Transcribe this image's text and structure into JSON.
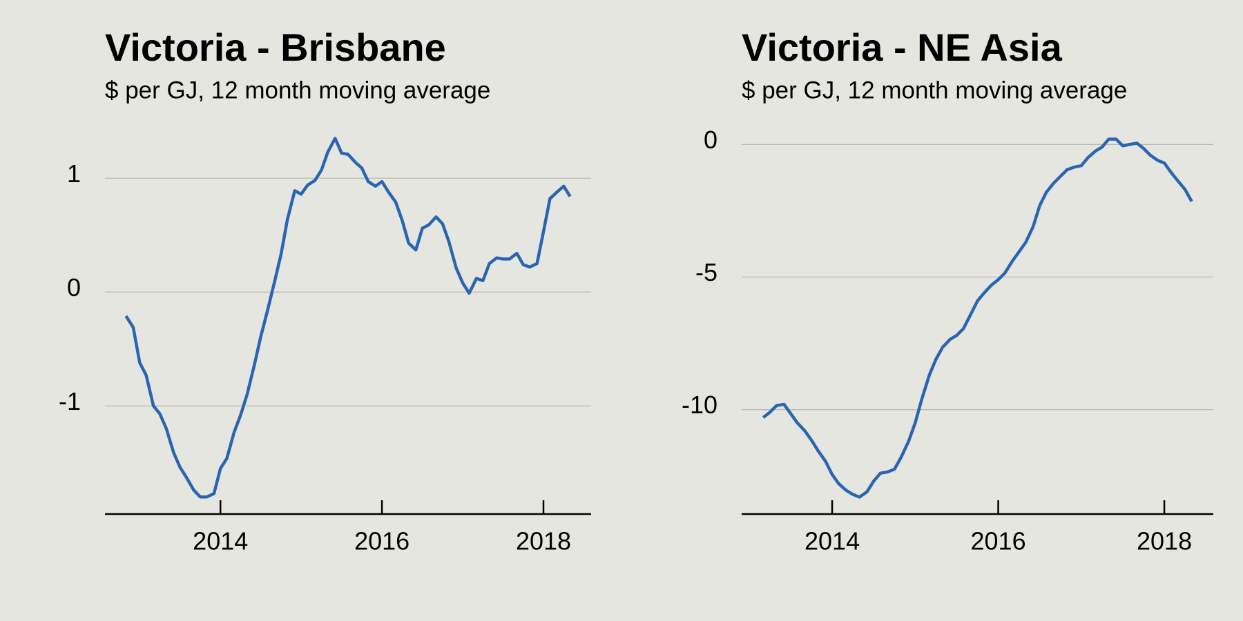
{
  "chart_data": [
    {
      "type": "line",
      "title": "Victoria - Brisbane",
      "subtitle": "$ per GJ, 12 month moving average",
      "x": [
        2012.83,
        2012.92,
        2013.0,
        2013.08,
        2013.17,
        2013.25,
        2013.33,
        2013.42,
        2013.5,
        2013.58,
        2013.67,
        2013.75,
        2013.83,
        2013.92,
        2014.0,
        2014.08,
        2014.17,
        2014.25,
        2014.33,
        2014.42,
        2014.5,
        2014.58,
        2014.67,
        2014.75,
        2014.83,
        2014.92,
        2015.0,
        2015.08,
        2015.17,
        2015.25,
        2015.33,
        2015.42,
        2015.5,
        2015.58,
        2015.67,
        2015.75,
        2015.83,
        2015.92,
        2016.0,
        2016.08,
        2016.17,
        2016.25,
        2016.33,
        2016.42,
        2016.5,
        2016.58,
        2016.67,
        2016.75,
        2016.83,
        2016.92,
        2017.0,
        2017.08,
        2017.17,
        2017.25,
        2017.33,
        2017.42,
        2017.5,
        2017.58,
        2017.67,
        2017.75,
        2017.83,
        2017.92,
        2018.0,
        2018.08,
        2018.17,
        2018.25,
        2018.33
      ],
      "series": [
        {
          "color": "#2a65b0",
          "values": [
            -0.21,
            -0.31,
            -0.62,
            -0.73,
            -1.0,
            -1.07,
            -1.2,
            -1.41,
            -1.54,
            -1.63,
            -1.74,
            -1.8,
            -1.8,
            -1.77,
            -1.55,
            -1.46,
            -1.23,
            -1.08,
            -0.9,
            -0.64,
            -0.39,
            -0.17,
            0.09,
            0.33,
            0.64,
            0.89,
            0.86,
            0.94,
            0.98,
            1.07,
            1.23,
            1.35,
            1.22,
            1.21,
            1.14,
            1.09,
            0.97,
            0.93,
            0.97,
            0.88,
            0.79,
            0.63,
            0.43,
            0.37,
            0.56,
            0.59,
            0.66,
            0.6,
            0.44,
            0.21,
            0.08,
            -0.01,
            0.12,
            0.1,
            0.25,
            0.3,
            0.29,
            0.29,
            0.34,
            0.24,
            0.22,
            0.25,
            0.53,
            0.82,
            0.88,
            0.93,
            0.84
          ]
        }
      ],
      "xlim": [
        2012.57,
        2018.59
      ],
      "xticks": [
        2014,
        2016,
        2018
      ],
      "ylim": [
        -1.95,
        1.45
      ],
      "yticks": [
        -1,
        0,
        1
      ],
      "grid": true
    },
    {
      "type": "line",
      "title": "Victoria - NE Asia",
      "subtitle": "$ per GJ, 12 month moving average",
      "x": [
        2013.17,
        2013.25,
        2013.33,
        2013.42,
        2013.5,
        2013.58,
        2013.67,
        2013.75,
        2013.83,
        2013.92,
        2014.0,
        2014.08,
        2014.17,
        2014.25,
        2014.33,
        2014.42,
        2014.5,
        2014.58,
        2014.67,
        2014.75,
        2014.83,
        2014.92,
        2015.0,
        2015.08,
        2015.17,
        2015.25,
        2015.33,
        2015.42,
        2015.5,
        2015.58,
        2015.67,
        2015.75,
        2015.83,
        2015.92,
        2016.0,
        2016.08,
        2016.17,
        2016.25,
        2016.33,
        2016.42,
        2016.5,
        2016.58,
        2016.67,
        2016.75,
        2016.83,
        2016.92,
        2017.0,
        2017.08,
        2017.17,
        2017.25,
        2017.33,
        2017.42,
        2017.5,
        2017.58,
        2017.67,
        2017.75,
        2017.83,
        2017.92,
        2018.0,
        2018.08,
        2018.17,
        2018.25,
        2018.33
      ],
      "series": [
        {
          "color": "#2a65b0",
          "values": [
            -10.3,
            -10.1,
            -9.85,
            -9.8,
            -10.15,
            -10.5,
            -10.8,
            -11.15,
            -11.55,
            -11.95,
            -12.45,
            -12.8,
            -13.05,
            -13.2,
            -13.3,
            -13.1,
            -12.7,
            -12.4,
            -12.35,
            -12.25,
            -11.8,
            -11.2,
            -10.5,
            -9.6,
            -8.7,
            -8.1,
            -7.65,
            -7.35,
            -7.2,
            -6.95,
            -6.4,
            -5.9,
            -5.6,
            -5.3,
            -5.1,
            -4.85,
            -4.4,
            -4.05,
            -3.7,
            -3.1,
            -2.3,
            -1.8,
            -1.45,
            -1.2,
            -0.95,
            -0.85,
            -0.8,
            -0.5,
            -0.25,
            -0.1,
            0.2,
            0.2,
            -0.05,
            0.0,
            0.05,
            -0.15,
            -0.4,
            -0.6,
            -0.7,
            -1.05,
            -1.4,
            -1.7,
            -2.15
          ]
        }
      ],
      "xlim": [
        2012.91,
        2018.59
      ],
      "xticks": [
        2014,
        2016,
        2018
      ],
      "ylim": [
        -13.94,
        0.66
      ],
      "yticks": [
        -10,
        -5,
        0
      ],
      "grid": true
    }
  ]
}
